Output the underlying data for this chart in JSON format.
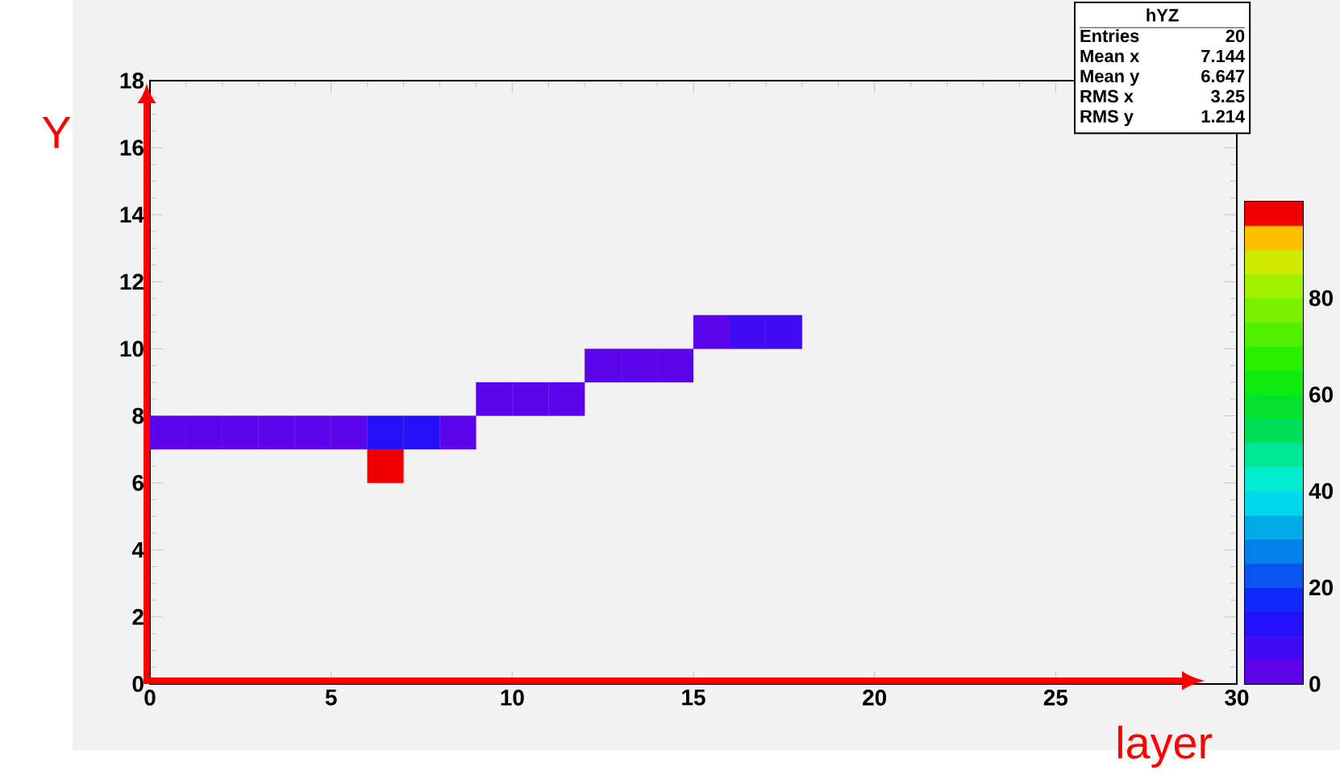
{
  "chart_data": {
    "type": "scatter",
    "xlabel": "layer",
    "ylabel": "Y",
    "annotations": [
      "hYZ",
      "Entries",
      "20",
      "Mean x",
      "7.144",
      "Mean y",
      "6.647",
      "RMS x",
      "3.25",
      "RMS y",
      "1.214"
    ],
    "xlim": [
      0,
      30
    ],
    "ylim": [
      0,
      18
    ],
    "xticks": [
      0,
      5,
      10,
      15,
      20,
      25,
      30
    ],
    "yticks": [
      0,
      2,
      4,
      6,
      8,
      10,
      12,
      14,
      16,
      18
    ],
    "clim": [
      0,
      100
    ],
    "cticks": [
      0,
      20,
      40,
      60,
      80
    ],
    "marker": "square",
    "x": [
      0.5,
      1.5,
      2.5,
      3.5,
      4.5,
      5.5,
      6.5,
      7.5,
      8.5,
      6.5,
      9.5,
      10.5,
      11.5,
      12.5,
      13.5,
      14.5,
      15.5,
      16.5,
      17.5
    ],
    "values": [
      7.5,
      7.5,
      7.5,
      7.5,
      7.5,
      7.5,
      7.5,
      7.5,
      7.5,
      6.5,
      8.5,
      8.5,
      8.5,
      9.5,
      9.5,
      9.5,
      10.5,
      10.5,
      10.5
    ],
    "cvalues": [
      3,
      3,
      3,
      3,
      3,
      3,
      12,
      12,
      3,
      100,
      3,
      3,
      3,
      3,
      3,
      3,
      3,
      8,
      8
    ]
  }
}
